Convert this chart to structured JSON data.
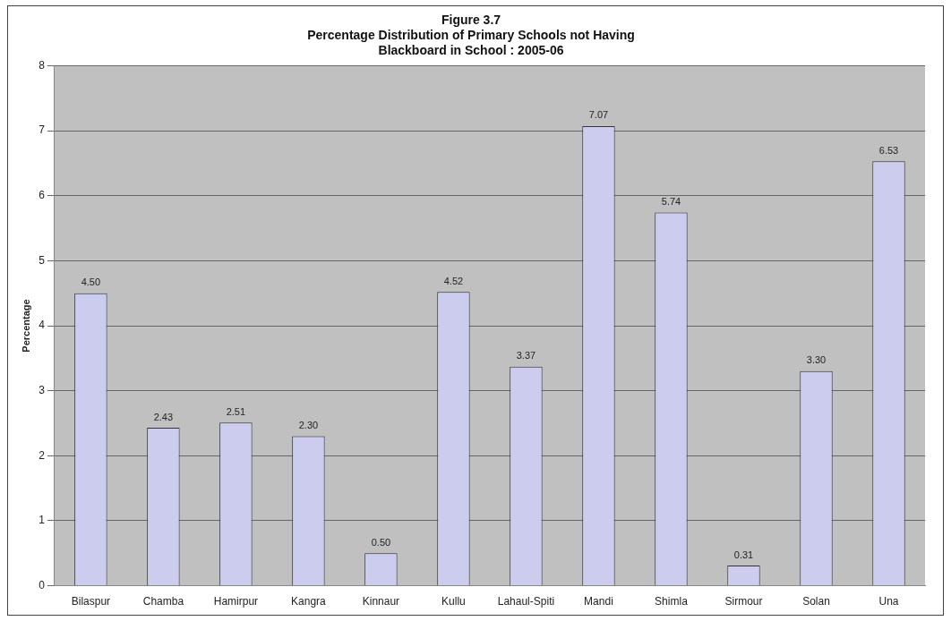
{
  "chart_data": {
    "type": "bar",
    "title": "Figure 3.7\nPercentage Distribution of Primary Schools not Having\nBlackboard in School : 2005-06",
    "ylabel": "Percentage",
    "categories": [
      "Bilaspur",
      "Chamba",
      "Hamirpur",
      "Kangra",
      "Kinnaur",
      "Kullu",
      "Lahaul-Spiti",
      "Mandi",
      "Shimla",
      "Sirmour",
      "Solan",
      "Una"
    ],
    "values": [
      4.5,
      2.43,
      2.51,
      2.3,
      0.5,
      4.52,
      3.37,
      7.07,
      5.74,
      0.31,
      3.3,
      6.53
    ],
    "value_labels": [
      "4.50",
      "2.43",
      "2.51",
      "2.30",
      "0.50",
      "4.52",
      "3.37",
      "7.07",
      "5.74",
      "0.31",
      "3.30",
      "6.53"
    ],
    "color": "#ccccee",
    "ylim": [
      0,
      8
    ],
    "yticks": [
      0,
      1,
      2,
      3,
      4,
      5,
      6,
      7,
      8
    ],
    "grid": "y",
    "legend": false
  }
}
